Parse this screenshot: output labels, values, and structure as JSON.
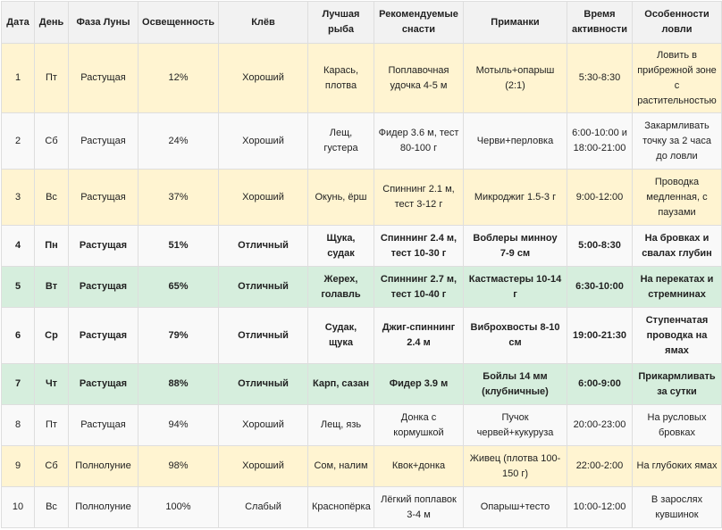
{
  "headers": [
    "Дата",
    "День",
    "Фаза Луны",
    "Освещенность",
    "Клёв",
    "Лучшая рыба",
    "Рекомендуемые снасти",
    "Приманки",
    "Время активности",
    "Особенности ловли"
  ],
  "colors": {
    "header_bg": "#f2f2f2",
    "row_plain": "#f9f9f9",
    "row_yellow": "#fff4d1",
    "row_green": "#d6eedd",
    "border": "#dedede"
  },
  "rows": [
    {
      "date": "1",
      "day": "Пт",
      "phase": "Растущая",
      "illumination": "12%",
      "bite": "Хороший",
      "fish": "Карась, плотва",
      "tackle": "Поплавочная удочка 4-5 м",
      "bait": "Мотыль+опарыш (2:1)",
      "time": "5:30-8:30",
      "notes": "Ловить в прибрежной зоне с растительностью",
      "highlight": "yellow",
      "bold": false
    },
    {
      "date": "2",
      "day": "Сб",
      "phase": "Растущая",
      "illumination": "24%",
      "bite": "Хороший",
      "fish": "Лещ, густера",
      "tackle": "Фидер 3.6 м, тест 80-100 г",
      "bait": "Черви+перловка",
      "time": "6:00-10:00 и 18:00-21:00",
      "notes": "Закармливать точку за 2 часа до ловли",
      "highlight": "plain",
      "bold": false
    },
    {
      "date": "3",
      "day": "Вс",
      "phase": "Растущая",
      "illumination": "37%",
      "bite": "Хороший",
      "fish": "Окунь, ёрш",
      "tackle": "Спиннинг 2.1 м, тест 3-12 г",
      "bait": "Микроджиг 1.5-3 г",
      "time": "9:00-12:00",
      "notes": "Проводка медленная, с паузами",
      "highlight": "yellow",
      "bold": false
    },
    {
      "date": "4",
      "day": "Пн",
      "phase": "Растущая",
      "illumination": "51%",
      "bite": "Отличный",
      "fish": "Щука, судак",
      "tackle": "Спиннинг 2.4 м, тест 10-30 г",
      "bait": "Воблеры минноу 7-9 см",
      "time": "5:00-8:30",
      "notes": "На бровках и свалах глубин",
      "highlight": "plain",
      "bold": true
    },
    {
      "date": "5",
      "day": "Вт",
      "phase": "Растущая",
      "illumination": "65%",
      "bite": "Отличный",
      "fish": "Жерех, голавль",
      "tackle": "Спиннинг 2.7 м, тест 10-40 г",
      "bait": "Кастмастеры 10-14 г",
      "time": "6:30-10:00",
      "notes": "На перекатах и стремнинах",
      "highlight": "green",
      "bold": true
    },
    {
      "date": "6",
      "day": "Ср",
      "phase": "Растущая",
      "illumination": "79%",
      "bite": "Отличный",
      "fish": "Судак, щука",
      "tackle": "Джиг-спиннинг 2.4 м",
      "bait": "Виброхвосты 8-10 см",
      "time": "19:00-21:30",
      "notes": "Ступенчатая проводка на ямах",
      "highlight": "plain",
      "bold": true
    },
    {
      "date": "7",
      "day": "Чт",
      "phase": "Растущая",
      "illumination": "88%",
      "bite": "Отличный",
      "fish": "Карп, сазан",
      "tackle": "Фидер 3.9 м",
      "bait": "Бойлы 14 мм (клубничные)",
      "time": "6:00-9:00",
      "notes": "Прикармливать за сутки",
      "highlight": "green",
      "bold": true
    },
    {
      "date": "8",
      "day": "Пт",
      "phase": "Растущая",
      "illumination": "94%",
      "bite": "Хороший",
      "fish": "Лещ, язь",
      "tackle": "Донка с кормушкой",
      "bait": "Пучок червей+кукуруза",
      "time": "20:00-23:00",
      "notes": "На русловых бровках",
      "highlight": "plain",
      "bold": false
    },
    {
      "date": "9",
      "day": "Сб",
      "phase": "Полнолуние",
      "illumination": "98%",
      "bite": "Хороший",
      "fish": "Сом, налим",
      "tackle": "Квок+донка",
      "bait": "Живец (плотва 100-150 г)",
      "time": "22:00-2:00",
      "notes": "На глубоких ямах",
      "highlight": "yellow",
      "bold": false
    },
    {
      "date": "10",
      "day": "Вс",
      "phase": "Полнолуние",
      "illumination": "100%",
      "bite": "Слабый",
      "fish": "Краснопёрка",
      "tackle": "Лёгкий поплавок 3-4 м",
      "bait": "Опарыш+тесто",
      "time": "10:00-12:00",
      "notes": "В зарослях кувшинок",
      "highlight": "plain",
      "bold": false
    }
  ]
}
